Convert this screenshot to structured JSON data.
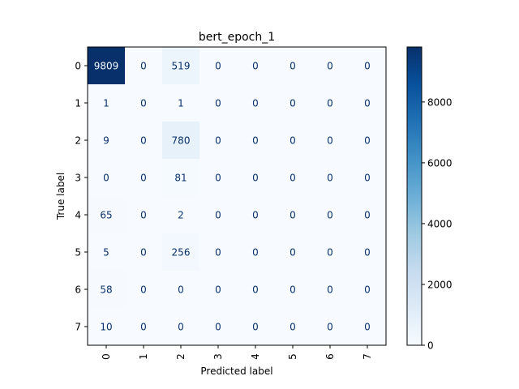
{
  "chart_data": {
    "type": "heatmap",
    "title": "bert_epoch_1",
    "xlabel": "Predicted label",
    "ylabel": "True label",
    "x_tick_labels": [
      "0",
      "1",
      "2",
      "3",
      "4",
      "5",
      "6",
      "7"
    ],
    "y_tick_labels": [
      "0",
      "1",
      "2",
      "3",
      "4",
      "5",
      "6",
      "7"
    ],
    "matrix": [
      [
        9809,
        0,
        519,
        0,
        0,
        0,
        0,
        0
      ],
      [
        1,
        0,
        1,
        0,
        0,
        0,
        0,
        0
      ],
      [
        9,
        0,
        780,
        0,
        0,
        0,
        0,
        0
      ],
      [
        0,
        0,
        81,
        0,
        0,
        0,
        0,
        0
      ],
      [
        65,
        0,
        2,
        0,
        0,
        0,
        0,
        0
      ],
      [
        5,
        0,
        256,
        0,
        0,
        0,
        0,
        0
      ],
      [
        58,
        0,
        0,
        0,
        0,
        0,
        0,
        0
      ],
      [
        10,
        0,
        0,
        0,
        0,
        0,
        0,
        0
      ]
    ],
    "colormap": "Blues",
    "vmin": 0,
    "vmax": 9809,
    "colorbar_ticks": [
      0,
      2000,
      4000,
      6000,
      8000
    ],
    "colors": {
      "low": "#f7fbff",
      "high": "#08306b",
      "text_on_light": "#08306b",
      "text_on_dark": "#f7fbff"
    }
  }
}
